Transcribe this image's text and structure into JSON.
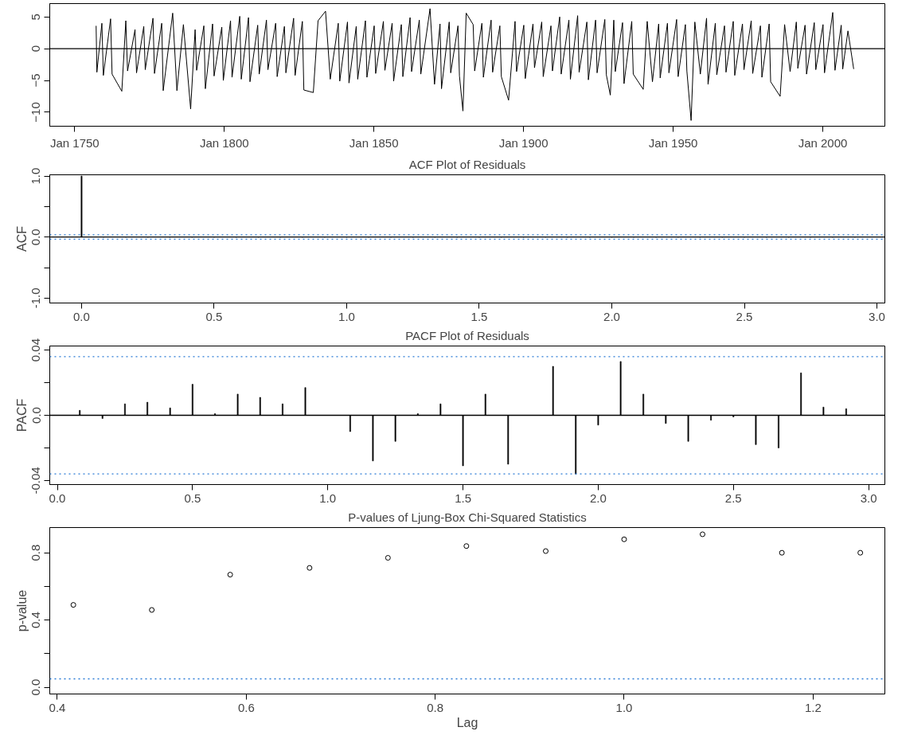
{
  "chart_data": [
    {
      "type": "line",
      "xlim": [
        "1741-09",
        "2020-10"
      ],
      "ylim": [
        -12.2,
        7.1
      ],
      "xticks": [
        {
          "value": "1750-01",
          "label": "Jan 1750"
        },
        {
          "value": "1800-01",
          "label": "Jan 1800"
        },
        {
          "value": "1850-01",
          "label": "Jan 1850"
        },
        {
          "value": "1900-01",
          "label": "Jan 1900"
        },
        {
          "value": "1950-01",
          "label": "Jan 1950"
        },
        {
          "value": "2000-01",
          "label": "Jan 2000"
        }
      ],
      "yticks": [
        -10,
        -5,
        0,
        5
      ],
      "grid": false,
      "line_style": "solid",
      "marker": "none",
      "ref_lines": [
        {
          "axis": "y",
          "value": 0,
          "color": "#000000",
          "line_style": "solid"
        }
      ],
      "x": [
        "1757-03",
        "1757-06",
        "1759-02",
        "1759-08",
        "1762-01",
        "1762-07",
        "1765-10",
        "1767-02",
        "1767-09",
        "1770-03",
        "1770-09",
        "1773-02",
        "1773-08",
        "1776-03",
        "1776-09",
        "1779-02",
        "1779-08",
        "1782-10",
        "1784-03",
        "1786-05",
        "1788-10",
        "1790-04",
        "1790-10",
        "1793-03",
        "1793-09",
        "1796-02",
        "1796-08",
        "1799-03",
        "1799-09",
        "1802-02",
        "1802-08",
        "1805-03",
        "1805-09",
        "1808-02",
        "1808-08",
        "1811-03",
        "1811-09",
        "1814-02",
        "1814-08",
        "1817-03",
        "1817-09",
        "1820-02",
        "1820-08",
        "1823-03",
        "1823-09",
        "1826-02",
        "1826-08",
        "1829-10",
        "1831-05",
        "1833-11",
        "1835-06",
        "1838-02",
        "1838-08",
        "1841-03",
        "1841-09",
        "1844-02",
        "1844-08",
        "1847-03",
        "1847-09",
        "1850-02",
        "1850-08",
        "1853-03",
        "1853-09",
        "1856-02",
        "1856-08",
        "1859-03",
        "1859-09",
        "1862-02",
        "1862-08",
        "1865-03",
        "1865-09",
        "1868-10",
        "1870-04",
        "1872-02",
        "1872-08",
        "1875-03",
        "1875-09",
        "1878-02",
        "1878-08",
        "1879-10",
        "1880-11",
        "1883-03",
        "1883-09",
        "1886-02",
        "1886-08",
        "1889-03",
        "1889-09",
        "1892-02",
        "1892-08",
        "1895-01",
        "1897-03",
        "1897-09",
        "1900-02",
        "1900-08",
        "1903-03",
        "1903-09",
        "1906-02",
        "1906-08",
        "1909-03",
        "1909-09",
        "1912-02",
        "1912-08",
        "1915-03",
        "1915-09",
        "1918-02",
        "1918-08",
        "1921-03",
        "1921-09",
        "1924-02",
        "1924-08",
        "1927-03",
        "1927-09",
        "1929-01",
        "1930-03",
        "1930-09",
        "1933-02",
        "1933-08",
        "1936-03",
        "1936-09",
        "1940-01",
        "1941-05",
        "1943-02",
        "1945-03",
        "1945-09",
        "1948-02",
        "1948-08",
        "1951-03",
        "1951-09",
        "1954-02",
        "1954-08",
        "1956-01",
        "1957-04",
        "1959-02",
        "1961-03",
        "1961-09",
        "1964-02",
        "1964-08",
        "1967-03",
        "1967-09",
        "1970-02",
        "1970-08",
        "1973-03",
        "1973-09",
        "1976-02",
        "1976-08",
        "1979-03",
        "1979-09",
        "1982-02",
        "1982-08",
        "1985-10",
        "1987-04",
        "1989-02",
        "1991-03",
        "1991-09",
        "1994-02",
        "1994-08",
        "1997-03",
        "1997-09",
        "2000-02",
        "2000-08",
        "2003-05",
        "2004-02",
        "2006-03",
        "2006-09",
        "2008-06",
        "2010-05"
      ],
      "series": [
        {
          "color": "#000000",
          "values": [
            3.6,
            -3.7,
            4.0,
            -4.2,
            4.7,
            -4.0,
            -6.7,
            4.4,
            -3.5,
            3.0,
            -3.8,
            3.5,
            -3.3,
            4.8,
            -3.9,
            4.0,
            -6.6,
            5.6,
            -6.6,
            3.8,
            -9.5,
            3.0,
            -3.4,
            3.6,
            -6.3,
            3.9,
            -4.3,
            3.4,
            -5.0,
            4.4,
            -4.5,
            5.1,
            -4.8,
            4.9,
            -5.2,
            3.7,
            -4.0,
            4.5,
            -3.3,
            4.0,
            -4.4,
            3.5,
            -3.8,
            4.8,
            -4.2,
            4.3,
            -6.5,
            -6.9,
            4.4,
            5.9,
            -4.8,
            4.0,
            -5.1,
            4.2,
            -5.4,
            3.5,
            -4.8,
            4.4,
            -4.5,
            3.6,
            -3.9,
            4.3,
            -3.4,
            4.0,
            -5.1,
            3.8,
            -4.4,
            4.9,
            -3.6,
            4.5,
            -4.0,
            6.3,
            -5.6,
            3.9,
            -6.3,
            4.2,
            -3.8,
            3.6,
            -4.3,
            -9.8,
            5.6,
            3.8,
            -3.5,
            4.0,
            -4.5,
            4.5,
            -3.7,
            3.6,
            -4.4,
            -8.1,
            4.3,
            -3.6,
            3.7,
            -4.7,
            3.9,
            -3.0,
            4.2,
            -4.4,
            3.6,
            -3.5,
            5.0,
            -4.0,
            4.5,
            -4.8,
            5.2,
            -3.7,
            4.2,
            -4.9,
            4.5,
            -3.8,
            4.6,
            -4.1,
            -7.3,
            4.5,
            -3.6,
            4.1,
            -5.5,
            4.3,
            -4.0,
            -6.4,
            4.3,
            -5.2,
            3.9,
            -4.6,
            4.0,
            -3.8,
            4.6,
            -4.4,
            3.8,
            -3.5,
            -11.3,
            4.2,
            -4.0,
            4.8,
            -5.6,
            4.0,
            -4.1,
            3.6,
            -3.7,
            4.3,
            -4.2,
            3.9,
            -3.3,
            4.4,
            -3.9,
            3.6,
            -4.5,
            3.9,
            -5.2,
            -7.5,
            3.8,
            -3.6,
            4.2,
            -3.1,
            3.7,
            -4.0,
            4.1,
            -3.3,
            3.8,
            -3.8,
            5.7,
            -3.4,
            3.7,
            -3.2,
            2.8,
            -3.2
          ]
        }
      ]
    },
    {
      "type": "bar",
      "title": "ACF Plot of Residuals",
      "ylabel": "ACF",
      "xlim": [
        -0.12,
        3.03
      ],
      "ylim": [
        -1.08,
        1.02
      ],
      "xticks": [
        {
          "value": 0,
          "label": "0.0"
        },
        {
          "value": 0.5,
          "label": "0.5"
        },
        {
          "value": 1,
          "label": "1.0"
        },
        {
          "value": 1.5,
          "label": "1.5"
        },
        {
          "value": 2,
          "label": "2.0"
        },
        {
          "value": 2.5,
          "label": "2.5"
        },
        {
          "value": 3,
          "label": "3.0"
        }
      ],
      "yticks": [
        {
          "value": -1,
          "label": "-1.0"
        },
        {
          "value": -0.5,
          "label": null
        },
        {
          "value": 0,
          "label": "0.0"
        },
        {
          "value": 0.5,
          "label": null
        },
        {
          "value": 1,
          "label": "1.0"
        }
      ],
      "grid": false,
      "ref_lines": [
        {
          "axis": "y",
          "value": 0,
          "color": "#000000",
          "line_style": "solid"
        },
        {
          "axis": "y",
          "value": 0.036,
          "color": "#2b7bd6",
          "line_style": "dotted"
        },
        {
          "axis": "y",
          "value": -0.036,
          "color": "#2b7bd6",
          "line_style": "dotted"
        }
      ],
      "x": [
        0,
        0.083,
        0.167,
        0.25,
        0.333,
        0.417,
        0.5,
        0.583,
        0.667,
        0.75,
        0.833,
        0.917,
        1.0,
        1.083,
        1.167,
        1.25,
        1.333,
        1.417,
        1.5,
        1.583,
        1.667,
        1.75,
        1.833,
        1.917,
        2.0,
        2.083,
        2.167,
        2.25,
        2.333,
        2.417,
        2.5,
        2.583,
        2.667,
        2.75,
        2.833,
        2.917
      ],
      "series": [
        {
          "color": "#000000",
          "values": [
            1.0,
            0,
            0,
            0,
            0,
            0,
            0,
            0,
            0,
            0,
            0,
            0,
            0,
            0,
            0,
            0,
            0,
            0,
            0,
            0,
            0,
            0,
            0,
            0,
            0,
            0,
            0,
            0,
            0,
            0,
            0,
            0,
            0,
            0,
            0,
            0
          ]
        }
      ]
    },
    {
      "type": "bar",
      "title": "PACF Plot of Residuals",
      "ylabel": "PACF",
      "xlim": [
        -0.028,
        3.06
      ],
      "ylim": [
        -0.0425,
        0.0425
      ],
      "xticks": [
        {
          "value": 0,
          "label": "0.0"
        },
        {
          "value": 0.5,
          "label": "0.5"
        },
        {
          "value": 1,
          "label": "1.0"
        },
        {
          "value": 1.5,
          "label": "1.5"
        },
        {
          "value": 2,
          "label": "2.0"
        },
        {
          "value": 2.5,
          "label": "2.5"
        },
        {
          "value": 3,
          "label": "3.0"
        }
      ],
      "yticks": [
        {
          "value": -0.04,
          "label": "-0.04"
        },
        {
          "value": -0.02,
          "label": null
        },
        {
          "value": 0,
          "label": "0.0"
        },
        {
          "value": 0.02,
          "label": null
        },
        {
          "value": 0.04,
          "label": "0.04"
        }
      ],
      "grid": false,
      "ref_lines": [
        {
          "axis": "y",
          "value": 0,
          "color": "#000000",
          "line_style": "solid"
        },
        {
          "axis": "y",
          "value": 0.036,
          "color": "#2b7bd6",
          "line_style": "dotted"
        },
        {
          "axis": "y",
          "value": -0.036,
          "color": "#2b7bd6",
          "line_style": "dotted"
        }
      ],
      "x": [
        0.083,
        0.167,
        0.25,
        0.333,
        0.417,
        0.5,
        0.583,
        0.667,
        0.75,
        0.833,
        0.917,
        1.0,
        1.083,
        1.167,
        1.25,
        1.333,
        1.417,
        1.5,
        1.583,
        1.667,
        1.75,
        1.833,
        1.917,
        2.0,
        2.083,
        2.167,
        2.25,
        2.333,
        2.417,
        2.5,
        2.583,
        2.667,
        2.75,
        2.833,
        2.917
      ],
      "series": [
        {
          "color": "#000000",
          "values": [
            0.003,
            -0.002,
            0.007,
            0.008,
            0.0045,
            0.019,
            0.001,
            0.013,
            0.011,
            0.007,
            0.017,
            0,
            -0.01,
            -0.028,
            -0.016,
            0.001,
            0.007,
            -0.031,
            0.013,
            -0.03,
            0,
            0.03,
            -0.036,
            -0.006,
            0.033,
            0.013,
            -0.005,
            -0.016,
            -0.003,
            -0.001,
            -0.018,
            -0.02,
            0.026,
            0.005,
            0.004
          ]
        }
      ]
    },
    {
      "type": "scatter",
      "title": "P-values of Ljung-Box Chi-Squared Statistics",
      "xlabel": "Lag",
      "ylabel": "p-value",
      "xlim": [
        0.392,
        1.276
      ],
      "ylim": [
        -0.04,
        0.95
      ],
      "xticks": [
        {
          "value": 0.4,
          "label": "0.4"
        },
        {
          "value": 0.6,
          "label": "0.6"
        },
        {
          "value": 0.8,
          "label": "0.8"
        },
        {
          "value": 1.0,
          "label": "1.0"
        },
        {
          "value": 1.2,
          "label": "1.2"
        }
      ],
      "yticks": [
        {
          "value": 0,
          "label": "0.0"
        },
        {
          "value": 0.2,
          "label": null
        },
        {
          "value": 0.4,
          "label": "0.4"
        },
        {
          "value": 0.6,
          "label": null
        },
        {
          "value": 0.8,
          "label": "0.8"
        }
      ],
      "grid": false,
      "marker": "circle",
      "ref_lines": [
        {
          "axis": "y",
          "value": 0.05,
          "color": "#2b7bd6",
          "line_style": "dotted"
        }
      ],
      "x": [
        0.417,
        0.5,
        0.583,
        0.667,
        0.75,
        0.833,
        0.917,
        1.0,
        1.083,
        1.167,
        1.25
      ],
      "series": [
        {
          "color": "#000000",
          "values": [
            0.49,
            0.46,
            0.67,
            0.71,
            0.77,
            0.84,
            0.81,
            0.88,
            0.91,
            0.8,
            0.8
          ]
        }
      ]
    }
  ]
}
